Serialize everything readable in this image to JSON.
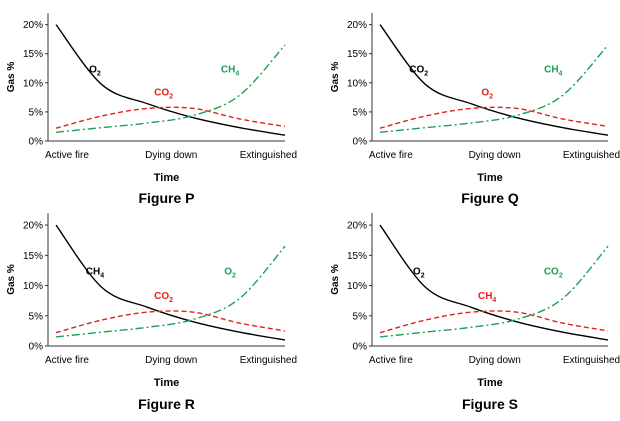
{
  "chart_data": [
    {
      "type": "line",
      "caption": "Figure P",
      "xlabel": "Time",
      "ylabel": "Gas %",
      "categories": [
        "Active fire",
        "Dying down",
        "Extinguished"
      ],
      "yticks": [
        "0%",
        "5%",
        "10%",
        "15%",
        "20%"
      ],
      "ylim": [
        0,
        22
      ],
      "grid": false,
      "x": [
        0,
        0.5,
        1,
        1.5,
        2,
        2.5
      ],
      "series": [
        {
          "name": "O2",
          "label_main": "O",
          "label_sub": "2",
          "color": "#000000",
          "dash": "solid",
          "values": [
            20,
            9.7,
            6.4,
            4.0,
            2.3,
            1.0
          ]
        },
        {
          "name": "CO2",
          "label_main": "CO",
          "label_sub": "2",
          "color": "#e3201b",
          "dash": "dashed",
          "values": [
            2.2,
            4.3,
            5.6,
            5.6,
            3.8,
            2.5
          ]
        },
        {
          "name": "CH4",
          "label_main": "CH",
          "label_sub": "4",
          "color": "#1aa152",
          "dash": "dashdot",
          "values": [
            1.5,
            2.3,
            3.1,
            4.4,
            7.8,
            16.5
          ]
        }
      ]
    },
    {
      "type": "line",
      "caption": "Figure Q",
      "xlabel": "Time",
      "ylabel": "Gas %",
      "categories": [
        "Active fire",
        "Dying down",
        "Extinguished"
      ],
      "yticks": [
        "0%",
        "5%",
        "10%",
        "15%",
        "20%"
      ],
      "ylim": [
        0,
        22
      ],
      "grid": false,
      "x": [
        0,
        0.5,
        1,
        1.5,
        2,
        2.5
      ],
      "series": [
        {
          "name": "CO2",
          "label_main": "CO",
          "label_sub": "2",
          "color": "#000000",
          "dash": "solid",
          "values": [
            20,
            9.7,
            6.4,
            4.0,
            2.3,
            1.0
          ]
        },
        {
          "name": "O2",
          "label_main": "O",
          "label_sub": "2",
          "color": "#e3201b",
          "dash": "dashed",
          "values": [
            2.2,
            4.3,
            5.6,
            5.6,
            3.8,
            2.5
          ]
        },
        {
          "name": "CH4",
          "label_main": "CH",
          "label_sub": "4",
          "color": "#1aa152",
          "dash": "dashdot",
          "values": [
            1.5,
            2.3,
            3.1,
            4.4,
            7.8,
            16.5
          ]
        }
      ]
    },
    {
      "type": "line",
      "caption": "Figure R",
      "xlabel": "Time",
      "ylabel": "Gas %",
      "categories": [
        "Active fire",
        "Dying down",
        "Extinguished"
      ],
      "yticks": [
        "0%",
        "5%",
        "10%",
        "15%",
        "20%"
      ],
      "ylim": [
        0,
        22
      ],
      "grid": false,
      "x": [
        0,
        0.5,
        1,
        1.5,
        2,
        2.5
      ],
      "series": [
        {
          "name": "CH4",
          "label_main": "CH",
          "label_sub": "4",
          "color": "#000000",
          "dash": "solid",
          "values": [
            20,
            9.7,
            6.4,
            4.0,
            2.3,
            1.0
          ]
        },
        {
          "name": "CO2",
          "label_main": "CO",
          "label_sub": "2",
          "color": "#e3201b",
          "dash": "dashed",
          "values": [
            2.2,
            4.3,
            5.6,
            5.6,
            3.8,
            2.5
          ]
        },
        {
          "name": "O2",
          "label_main": "O",
          "label_sub": "2",
          "color": "#1aa152",
          "dash": "dashdot",
          "values": [
            1.5,
            2.3,
            3.1,
            4.4,
            7.8,
            16.5
          ]
        }
      ]
    },
    {
      "type": "line",
      "caption": "Figure S",
      "xlabel": "Time",
      "ylabel": "Gas %",
      "categories": [
        "Active fire",
        "Dying down",
        "Extinguished"
      ],
      "yticks": [
        "0%",
        "5%",
        "10%",
        "15%",
        "20%"
      ],
      "ylim": [
        0,
        22
      ],
      "grid": false,
      "x": [
        0,
        0.5,
        1,
        1.5,
        2,
        2.5
      ],
      "series": [
        {
          "name": "O2",
          "label_main": "O",
          "label_sub": "2",
          "color": "#000000",
          "dash": "solid",
          "values": [
            20,
            9.7,
            6.4,
            4.0,
            2.3,
            1.0
          ]
        },
        {
          "name": "CH4",
          "label_main": "CH",
          "label_sub": "4",
          "color": "#e3201b",
          "dash": "dashed",
          "values": [
            2.2,
            4.3,
            5.6,
            5.6,
            3.8,
            2.5
          ]
        },
        {
          "name": "CO2",
          "label_main": "CO",
          "label_sub": "2",
          "color": "#1aa152",
          "dash": "dashdot",
          "values": [
            1.5,
            2.3,
            3.1,
            4.4,
            7.8,
            16.5
          ]
        }
      ]
    }
  ]
}
